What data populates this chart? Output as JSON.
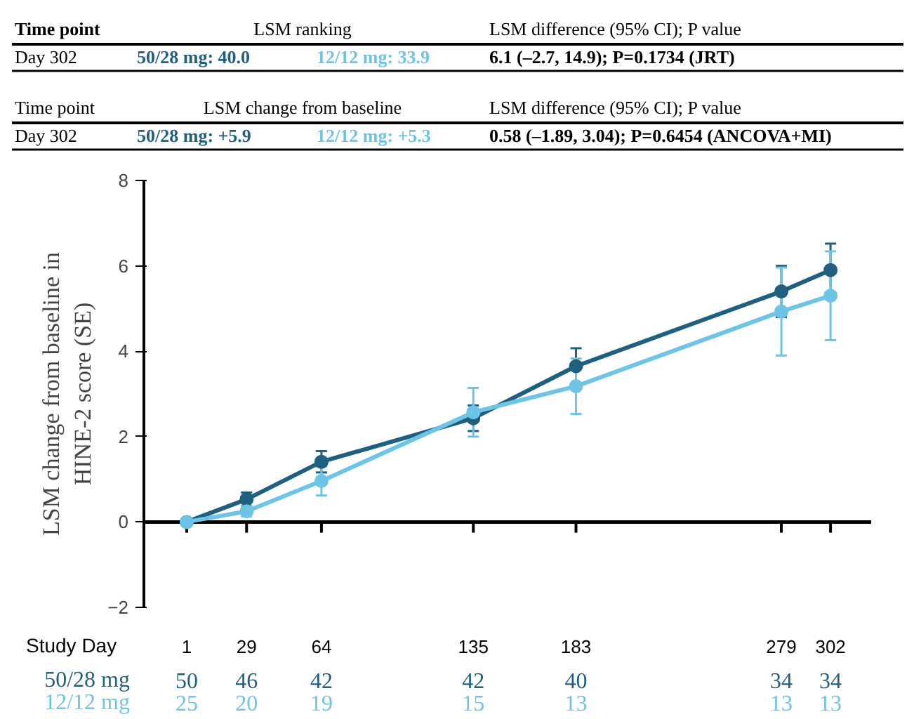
{
  "chart_data": {
    "type": "line",
    "xlabel": "Study Day",
    "ylabel": "LSM change from baseline in\nHINE-2 score (SE)",
    "x": [
      1,
      29,
      64,
      135,
      183,
      279,
      302
    ],
    "xlim": [
      -19,
      321
    ],
    "xticks": [
      1,
      29,
      64,
      135,
      183,
      279,
      302
    ],
    "ylim": [
      -2,
      8
    ],
    "yticks": [
      -2,
      0,
      2,
      4,
      6,
      8
    ],
    "marker": "circle",
    "line_style": "solid",
    "series": [
      {
        "name": "50/28 mg",
        "color": "#1f5f80",
        "values": [
          0,
          0.53,
          1.41,
          2.43,
          3.65,
          5.4,
          5.9
        ],
        "errors": [
          null,
          0.16,
          0.25,
          0.3,
          0.42,
          0.6,
          0.62
        ]
      },
      {
        "name": "12/12 mg",
        "color": "#6ec4e6",
        "values": [
          0,
          0.25,
          0.96,
          2.57,
          3.18,
          4.93,
          5.3
        ],
        "errors": [
          null,
          0.12,
          0.34,
          0.57,
          0.65,
          1.03,
          1.04
        ]
      }
    ],
    "annotations": [
      "Time point",
      "LSM ranking",
      "LSM difference (95% CI); P value",
      "Day 302",
      "50/28 mg: 40.0",
      "12/12 mg: 33.9",
      "6.1 (–2.7, 14.9); P=0.1734 (JRT)",
      "Time point",
      "LSM change from baseline",
      "LSM difference (95% CI); P value",
      "Day 302",
      "50/28 mg: +5.9",
      "12/12 mg: +5.3",
      "0.58 (–1.89, 3.04); P=0.6454 (ANCOVA+MI)",
      "50",
      "46",
      "42",
      "42",
      "40",
      "34",
      "34",
      "25",
      "20",
      "19",
      "15",
      "13",
      "13",
      "13"
    ]
  }
}
